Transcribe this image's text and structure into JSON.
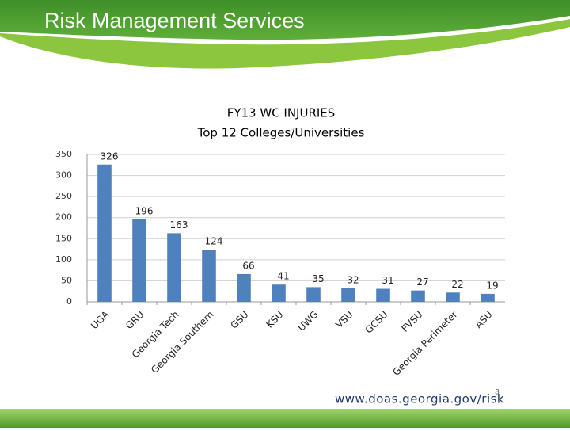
{
  "header": {
    "title": "Risk Management Services"
  },
  "chart_data": {
    "type": "bar",
    "title": "FY13 WC INJURIES",
    "subtitle": "Top 12 Colleges/Universities",
    "categories": [
      "UGA",
      "GRU",
      "Georgia Tech",
      "Georgia Southern",
      "GSU",
      "KSU",
      "UWG",
      "VSU",
      "GCSU",
      "FVSU",
      "Georgia Perimeter",
      "ASU"
    ],
    "values": [
      326,
      196,
      163,
      124,
      66,
      41,
      35,
      32,
      31,
      27,
      22,
      19
    ],
    "color": "#4f81bd",
    "ylim": [
      0,
      350
    ],
    "yticks": [
      0,
      50,
      100,
      150,
      200,
      250,
      300,
      350
    ],
    "grid": true
  },
  "footer": {
    "url": "www.doas.georgia.gov/risk",
    "page": "8"
  }
}
